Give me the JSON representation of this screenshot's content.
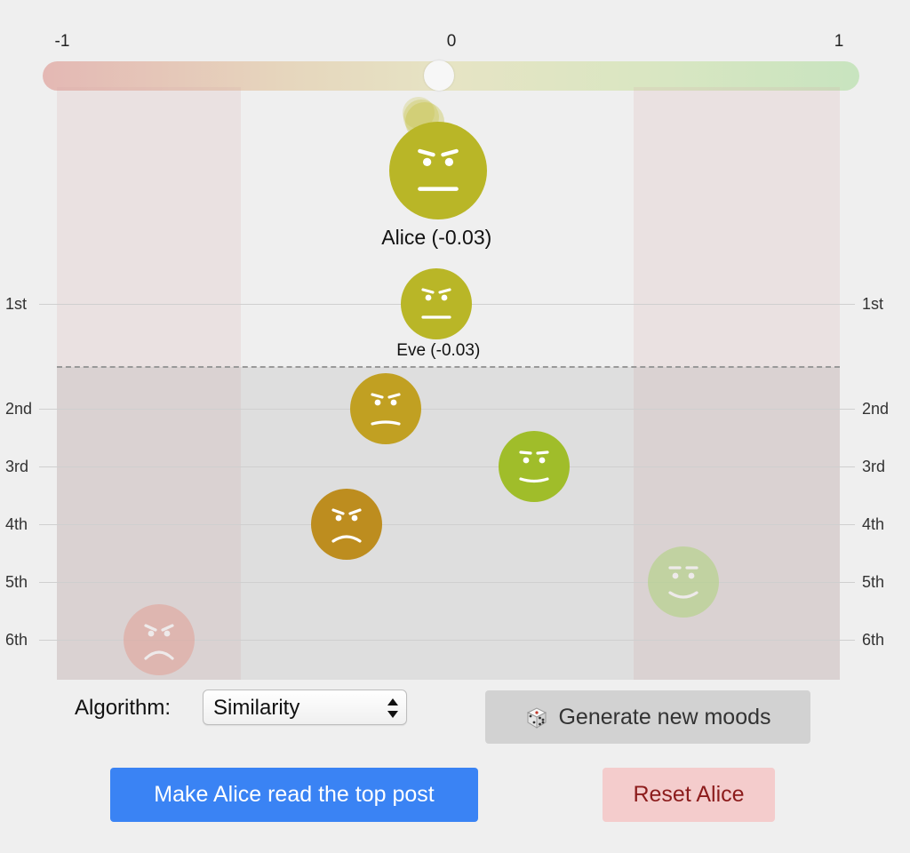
{
  "scale": {
    "min_label": "-1",
    "mid_label": "0",
    "max_label": "1",
    "value": -0.03
  },
  "ranks": [
    "1st",
    "2nd",
    "3rd",
    "4th",
    "5th",
    "6th"
  ],
  "reader": {
    "name": "Alice",
    "mood": -0.03,
    "label": "Alice (-0.03)"
  },
  "posts": [
    {
      "rank": 1,
      "mood": -0.03,
      "label": "Eve (-0.03)",
      "expression": "neutral",
      "color": "#b9b627",
      "faded": false
    },
    {
      "rank": 2,
      "mood": -0.16,
      "label": "",
      "expression": "slight-frown",
      "color": "#c1a022",
      "faded": false
    },
    {
      "rank": 3,
      "mood": 0.22,
      "label": "",
      "expression": "slight-smile",
      "color": "#a0bd2a",
      "faded": false
    },
    {
      "rank": 4,
      "mood": -0.26,
      "label": "",
      "expression": "frown",
      "color": "#bd8d1f",
      "faded": false
    },
    {
      "rank": 5,
      "mood": 0.6,
      "label": "",
      "expression": "smile",
      "color": "#aed27a",
      "faded": true
    },
    {
      "rank": 6,
      "mood": -0.74,
      "label": "",
      "expression": "angry",
      "color": "#e2a096",
      "faded": true
    }
  ],
  "controls": {
    "algorithm_label": "Algorithm:",
    "algorithm_value": "Similarity",
    "generate_label": "Generate new moods",
    "read_label": "Make Alice read the top post",
    "reset_label": "Reset Alice"
  },
  "icons": {
    "dice": "dice-icon",
    "select_arrows": "select-arrows-icon"
  },
  "colors": {
    "read_button": "#3a83f4",
    "reset_button": "#f4cccc",
    "reset_text": "#8c1c1c",
    "generate_button": "#d2d2d2"
  }
}
